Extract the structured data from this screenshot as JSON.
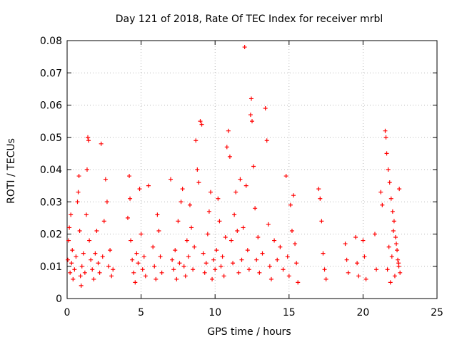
{
  "chart_data": {
    "type": "scatter",
    "title": "Day 121 of 2018, Rate Of TEC Index for receiver mrbl",
    "xlabel": "GPS time / hours",
    "ylabel": "ROTI / TECUs",
    "xlim": [
      0,
      25
    ],
    "ylim": [
      0,
      0.08
    ],
    "xticks": [
      0,
      5,
      10,
      15,
      20,
      25
    ],
    "yticks": [
      0,
      0.01,
      0.02,
      0.03,
      0.04,
      0.05,
      0.06,
      0.07,
      0.08
    ],
    "grid": true,
    "marker": "+",
    "marker_color": "#ff0000",
    "series": [
      {
        "name": "ROTI",
        "points": [
          [
            0.05,
            0.012
          ],
          [
            0.1,
            0.018
          ],
          [
            0.15,
            0.022
          ],
          [
            0.2,
            0.008
          ],
          [
            0.25,
            0.026
          ],
          [
            0.3,
            0.011
          ],
          [
            0.35,
            0.015
          ],
          [
            0.4,
            0.006
          ],
          [
            0.5,
            0.009
          ],
          [
            0.6,
            0.013
          ],
          [
            0.7,
            0.03
          ],
          [
            0.75,
            0.033
          ],
          [
            0.8,
            0.038
          ],
          [
            0.85,
            0.021
          ],
          [
            0.9,
            0.007
          ],
          [
            0.95,
            0.004
          ],
          [
            1.0,
            0.01
          ],
          [
            1.1,
            0.014
          ],
          [
            1.2,
            0.008
          ],
          [
            1.3,
            0.026
          ],
          [
            1.35,
            0.04
          ],
          [
            1.4,
            0.05
          ],
          [
            1.45,
            0.049
          ],
          [
            1.5,
            0.018
          ],
          [
            1.6,
            0.012
          ],
          [
            1.7,
            0.009
          ],
          [
            1.8,
            0.006
          ],
          [
            1.9,
            0.014
          ],
          [
            2.0,
            0.021
          ],
          [
            2.1,
            0.011
          ],
          [
            2.2,
            0.008
          ],
          [
            2.3,
            0.048
          ],
          [
            2.4,
            0.013
          ],
          [
            2.5,
            0.024
          ],
          [
            2.6,
            0.037
          ],
          [
            2.7,
            0.03
          ],
          [
            2.8,
            0.01
          ],
          [
            2.9,
            0.015
          ],
          [
            3.0,
            0.007
          ],
          [
            3.1,
            0.009
          ],
          [
            4.1,
            0.025
          ],
          [
            4.2,
            0.038
          ],
          [
            4.25,
            0.031
          ],
          [
            4.3,
            0.018
          ],
          [
            4.4,
            0.012
          ],
          [
            4.5,
            0.008
          ],
          [
            4.6,
            0.005
          ],
          [
            4.7,
            0.014
          ],
          [
            4.8,
            0.011
          ],
          [
            4.9,
            0.034
          ],
          [
            5.0,
            0.02
          ],
          [
            5.1,
            0.009
          ],
          [
            5.2,
            0.013
          ],
          [
            5.3,
            0.007
          ],
          [
            5.5,
            0.035
          ],
          [
            5.8,
            0.016
          ],
          [
            5.9,
            0.01
          ],
          [
            6.0,
            0.006
          ],
          [
            6.1,
            0.026
          ],
          [
            6.2,
            0.021
          ],
          [
            6.3,
            0.013
          ],
          [
            6.4,
            0.008
          ],
          [
            7.0,
            0.037
          ],
          [
            7.1,
            0.012
          ],
          [
            7.2,
            0.009
          ],
          [
            7.3,
            0.015
          ],
          [
            7.4,
            0.006
          ],
          [
            7.5,
            0.024
          ],
          [
            7.6,
            0.011
          ],
          [
            7.7,
            0.03
          ],
          [
            7.8,
            0.034
          ],
          [
            7.9,
            0.01
          ],
          [
            8.0,
            0.007
          ],
          [
            8.1,
            0.018
          ],
          [
            8.2,
            0.013
          ],
          [
            8.3,
            0.029
          ],
          [
            8.4,
            0.022
          ],
          [
            8.5,
            0.009
          ],
          [
            8.6,
            0.016
          ],
          [
            8.7,
            0.049
          ],
          [
            8.8,
            0.04
          ],
          [
            8.9,
            0.036
          ],
          [
            9.0,
            0.055
          ],
          [
            9.1,
            0.054
          ],
          [
            9.2,
            0.014
          ],
          [
            9.3,
            0.008
          ],
          [
            9.4,
            0.011
          ],
          [
            9.5,
            0.02
          ],
          [
            9.6,
            0.027
          ],
          [
            9.7,
            0.033
          ],
          [
            9.8,
            0.006
          ],
          [
            9.9,
            0.012
          ],
          [
            10.0,
            0.009
          ],
          [
            10.1,
            0.015
          ],
          [
            10.2,
            0.031
          ],
          [
            10.3,
            0.024
          ],
          [
            10.4,
            0.01
          ],
          [
            10.5,
            0.013
          ],
          [
            10.6,
            0.007
          ],
          [
            10.7,
            0.019
          ],
          [
            10.8,
            0.047
          ],
          [
            10.9,
            0.052
          ],
          [
            11.0,
            0.044
          ],
          [
            11.1,
            0.018
          ],
          [
            11.2,
            0.011
          ],
          [
            11.3,
            0.026
          ],
          [
            11.4,
            0.033
          ],
          [
            11.5,
            0.021
          ],
          [
            11.6,
            0.008
          ],
          [
            11.7,
            0.037
          ],
          [
            11.8,
            0.012
          ],
          [
            11.9,
            0.022
          ],
          [
            12.0,
            0.078
          ],
          [
            12.1,
            0.035
          ],
          [
            12.2,
            0.015
          ],
          [
            12.3,
            0.009
          ],
          [
            12.4,
            0.057
          ],
          [
            12.45,
            0.062
          ],
          [
            12.5,
            0.055
          ],
          [
            12.6,
            0.041
          ],
          [
            12.7,
            0.028
          ],
          [
            12.8,
            0.012
          ],
          [
            12.9,
            0.019
          ],
          [
            13.0,
            0.008
          ],
          [
            13.2,
            0.014
          ],
          [
            13.4,
            0.059
          ],
          [
            13.5,
            0.049
          ],
          [
            13.6,
            0.023
          ],
          [
            13.7,
            0.01
          ],
          [
            13.8,
            0.006
          ],
          [
            14.0,
            0.018
          ],
          [
            14.2,
            0.012
          ],
          [
            14.4,
            0.016
          ],
          [
            14.6,
            0.009
          ],
          [
            14.8,
            0.038
          ],
          [
            14.9,
            0.013
          ],
          [
            15.0,
            0.007
          ],
          [
            15.1,
            0.029
          ],
          [
            15.2,
            0.021
          ],
          [
            15.3,
            0.032
          ],
          [
            15.4,
            0.017
          ],
          [
            15.5,
            0.011
          ],
          [
            15.6,
            0.005
          ],
          [
            17.0,
            0.034
          ],
          [
            17.1,
            0.031
          ],
          [
            17.2,
            0.024
          ],
          [
            17.3,
            0.014
          ],
          [
            17.4,
            0.009
          ],
          [
            17.5,
            0.006
          ],
          [
            18.8,
            0.017
          ],
          [
            18.9,
            0.012
          ],
          [
            19.0,
            0.008
          ],
          [
            19.5,
            0.019
          ],
          [
            19.6,
            0.011
          ],
          [
            19.7,
            0.007
          ],
          [
            20.0,
            0.018
          ],
          [
            20.1,
            0.013
          ],
          [
            20.2,
            0.006
          ],
          [
            20.8,
            0.02
          ],
          [
            20.9,
            0.009
          ],
          [
            21.2,
            0.033
          ],
          [
            21.3,
            0.029
          ],
          [
            21.5,
            0.052
          ],
          [
            21.55,
            0.05
          ],
          [
            21.6,
            0.045
          ],
          [
            21.7,
            0.04
          ],
          [
            21.8,
            0.036
          ],
          [
            21.9,
            0.031
          ],
          [
            22.0,
            0.027
          ],
          [
            22.1,
            0.024
          ],
          [
            22.2,
            0.019
          ],
          [
            22.3,
            0.015
          ],
          [
            22.4,
            0.011
          ],
          [
            22.45,
            0.034
          ],
          [
            22.5,
            0.008
          ],
          [
            21.95,
            0.013
          ],
          [
            22.05,
            0.021
          ],
          [
            22.15,
            0.007
          ],
          [
            22.25,
            0.017
          ],
          [
            22.35,
            0.012
          ],
          [
            21.65,
            0.009
          ],
          [
            21.75,
            0.016
          ],
          [
            21.85,
            0.005
          ],
          [
            22.42,
            0.01
          ]
        ]
      }
    ]
  }
}
